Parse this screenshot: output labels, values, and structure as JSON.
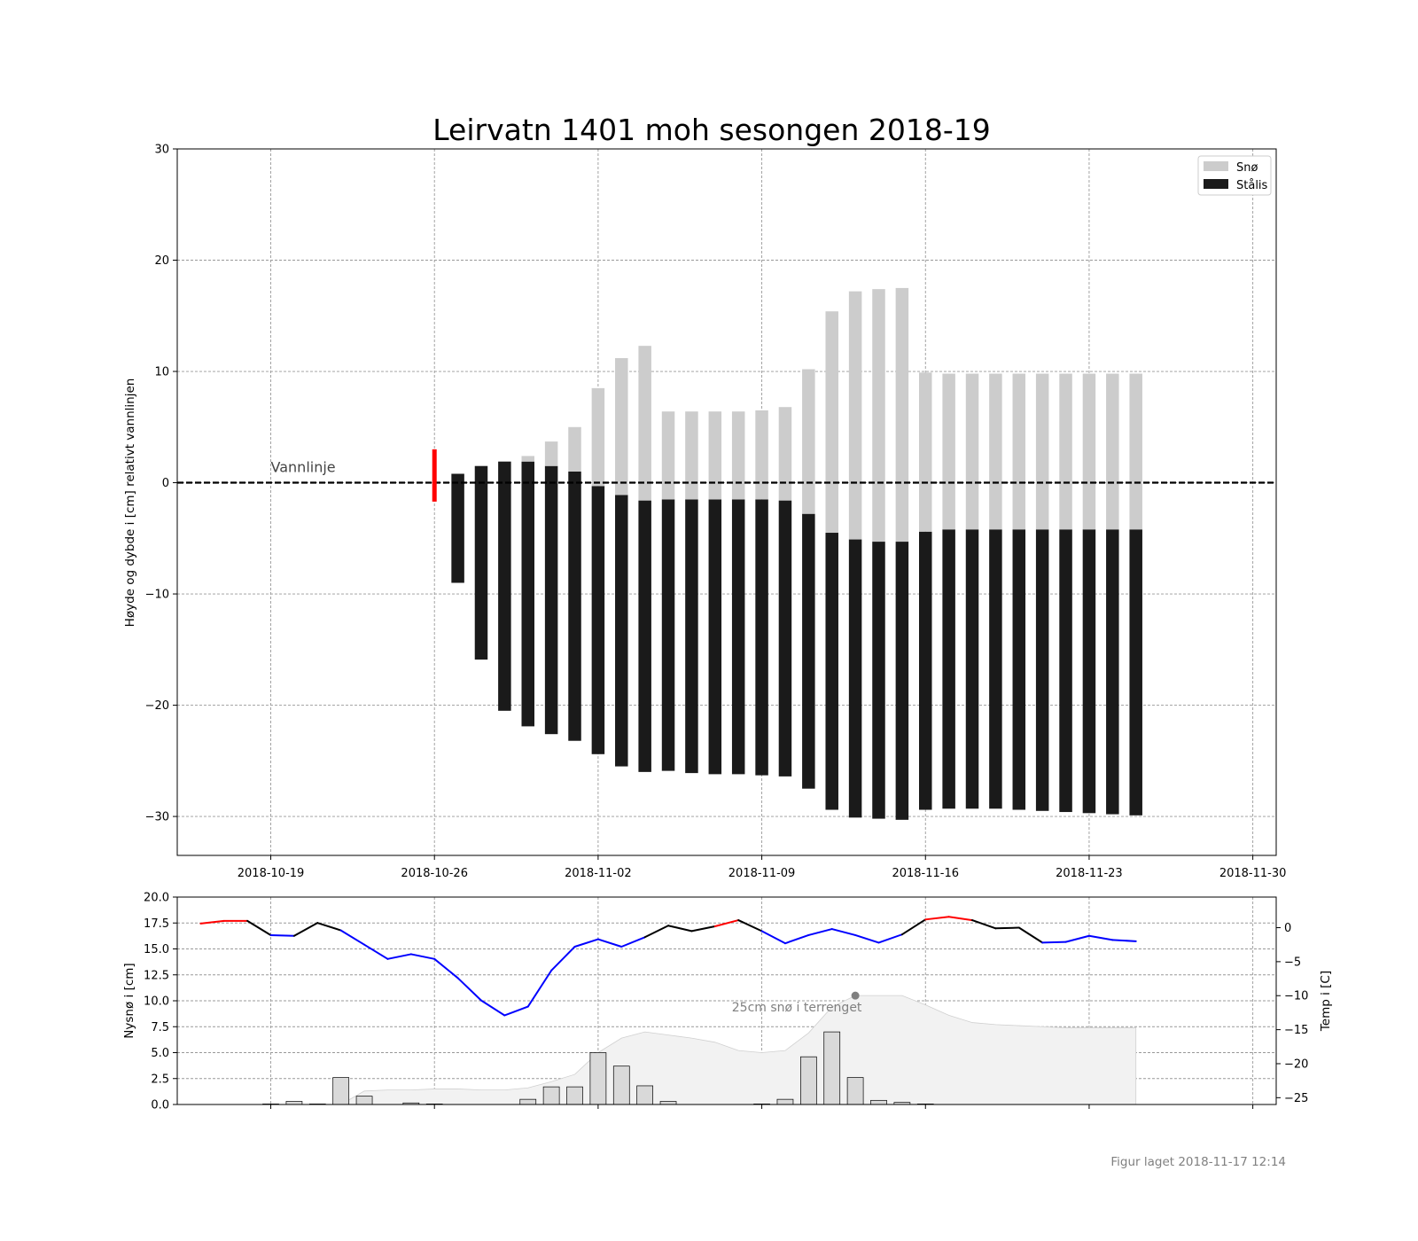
{
  "chart_data": [
    {
      "type": "bar",
      "title": "Leirvatn 1401 moh sesongen 2018-19",
      "ylabel": "Høyde og dybde i [cm] relativt vannlinjen",
      "xlabel": "",
      "xlim": [
        "2018-10-15",
        "2018-12-01"
      ],
      "ylim": [
        -33.5,
        30
      ],
      "x_ticks": [
        "2018-10-19",
        "2018-10-26",
        "2018-11-02",
        "2018-11-09",
        "2018-11-16",
        "2018-11-23",
        "2018-11-30"
      ],
      "y_ticks": [
        30,
        20,
        10,
        0,
        -10,
        -20,
        -30
      ],
      "grid": true,
      "legend_position": "top-right",
      "legend": [
        {
          "label": "Snø",
          "color": "#cccccc"
        },
        {
          "label": "Stålis",
          "color": "#1a1a1a"
        }
      ],
      "waterline": {
        "label": "Vannlinje",
        "y": 0
      },
      "marker": {
        "date": "2018-10-26",
        "y0": -1.7,
        "y1": 3,
        "color": "#ff0000"
      },
      "series": [
        {
          "name": "Stålis",
          "color": "#1a1a1a",
          "dates": [
            "2018-10-27",
            "2018-10-28",
            "2018-10-29",
            "2018-10-30",
            "2018-10-31",
            "2018-11-01",
            "2018-11-02",
            "2018-11-03",
            "2018-11-04",
            "2018-11-05",
            "2018-11-06",
            "2018-11-07",
            "2018-11-08",
            "2018-11-09",
            "2018-11-10",
            "2018-11-11",
            "2018-11-12",
            "2018-11-13",
            "2018-11-14",
            "2018-11-15",
            "2018-11-16",
            "2018-11-17",
            "2018-11-18",
            "2018-11-19",
            "2018-11-20",
            "2018-11-21",
            "2018-11-22",
            "2018-11-23",
            "2018-11-24",
            "2018-11-25"
          ],
          "top": [
            0.8,
            1.5,
            1.9,
            1.9,
            1.5,
            1.0,
            -0.3,
            -1.1,
            -1.6,
            -1.5,
            -1.5,
            -1.5,
            -1.5,
            -1.5,
            -1.6,
            -2.8,
            -4.5,
            -5.1,
            -5.3,
            -5.3,
            -4.4,
            -4.2,
            -4.2,
            -4.2,
            -4.2,
            -4.2,
            -4.2,
            -4.2,
            -4.2,
            -4.2
          ],
          "bottom": [
            -9.0,
            -15.9,
            -20.5,
            -21.9,
            -22.6,
            -23.2,
            -24.4,
            -25.5,
            -26.0,
            -25.9,
            -26.1,
            -26.2,
            -26.2,
            -26.3,
            -26.4,
            -27.5,
            -29.4,
            -30.1,
            -30.2,
            -30.3,
            -29.4,
            -29.3,
            -29.3,
            -29.3,
            -29.4,
            -29.5,
            -29.6,
            -29.7,
            -29.8,
            -29.9
          ]
        },
        {
          "name": "Snø",
          "color": "#cccccc",
          "dates": [
            "2018-10-30",
            "2018-10-31",
            "2018-11-01",
            "2018-11-02",
            "2018-11-03",
            "2018-11-04",
            "2018-11-05",
            "2018-11-06",
            "2018-11-07",
            "2018-11-08",
            "2018-11-09",
            "2018-11-10",
            "2018-11-11",
            "2018-11-12",
            "2018-11-13",
            "2018-11-14",
            "2018-11-15",
            "2018-11-16",
            "2018-11-17",
            "2018-11-18",
            "2018-11-19",
            "2018-11-20",
            "2018-11-21",
            "2018-11-22",
            "2018-11-23",
            "2018-11-24",
            "2018-11-25"
          ],
          "top": [
            2.4,
            3.7,
            5.0,
            8.5,
            11.2,
            12.3,
            6.4,
            6.4,
            6.4,
            6.4,
            6.5,
            6.8,
            10.2,
            15.4,
            17.2,
            17.4,
            17.5,
            9.9,
            9.8,
            9.8,
            9.8,
            9.8,
            9.8,
            9.8,
            9.8,
            9.8,
            9.8
          ],
          "bottom": [
            1.9,
            1.5,
            1.0,
            -0.3,
            -1.1,
            -1.6,
            -1.5,
            -1.5,
            -1.5,
            -1.5,
            -1.5,
            -1.6,
            -2.8,
            -4.5,
            -5.1,
            -5.3,
            -5.3,
            -4.4,
            -4.2,
            -4.2,
            -4.2,
            -4.2,
            -4.2,
            -4.2,
            -4.2,
            -4.2,
            -4.2
          ]
        }
      ]
    },
    {
      "type": "bar",
      "ylabel": "Nysnø i [cm]",
      "y2label": "Temp i [C]",
      "xlim": [
        "2018-10-15",
        "2018-12-01"
      ],
      "ylim": [
        0,
        20
      ],
      "y2lim": [
        -26,
        4.5
      ],
      "y_ticks": [
        "0.0",
        "2.5",
        "5.0",
        "7.5",
        "10.0",
        "12.5",
        "15.0",
        "17.5",
        "20.0"
      ],
      "y2_ticks": [
        0,
        -5,
        -10,
        -15,
        -20,
        -25
      ],
      "grid": true,
      "annotation": {
        "text": "25cm snø i terrenget",
        "date": "2018-11-13",
        "value": 10.5
      },
      "new_snow": {
        "name": "Nysnø",
        "dates": [
          "2018-10-19",
          "2018-10-20",
          "2018-10-21",
          "2018-10-22",
          "2018-10-23",
          "2018-10-25",
          "2018-10-26",
          "2018-10-30",
          "2018-10-31",
          "2018-11-01",
          "2018-11-02",
          "2018-11-03",
          "2018-11-04",
          "2018-11-05",
          "2018-11-09",
          "2018-11-10",
          "2018-11-11",
          "2018-11-12",
          "2018-11-13",
          "2018-11-14",
          "2018-11-15",
          "2018-11-16"
        ],
        "values": [
          0.05,
          0.3,
          0.05,
          2.6,
          0.8,
          0.15,
          0.05,
          0.5,
          1.7,
          1.7,
          5.0,
          3.7,
          1.8,
          0.3,
          0.05,
          0.5,
          4.6,
          7.0,
          2.6,
          0.4,
          0.2,
          0.05
        ]
      },
      "terrain_snow": {
        "name": "Snø i terrenget",
        "dates": [
          "2018-10-22",
          "2018-10-23",
          "2018-10-24",
          "2018-10-25",
          "2018-10-26",
          "2018-10-27",
          "2018-10-28",
          "2018-10-29",
          "2018-10-30",
          "2018-10-31",
          "2018-11-01",
          "2018-11-02",
          "2018-11-03",
          "2018-11-04",
          "2018-11-05",
          "2018-11-06",
          "2018-11-07",
          "2018-11-08",
          "2018-11-09",
          "2018-11-10",
          "2018-11-11",
          "2018-11-12",
          "2018-11-13",
          "2018-11-14",
          "2018-11-15",
          "2018-11-16",
          "2018-11-17",
          "2018-11-18",
          "2018-11-19",
          "2018-11-20",
          "2018-11-21",
          "2018-11-22",
          "2018-11-23",
          "2018-11-24",
          "2018-11-25"
        ],
        "values": [
          0,
          1.3,
          1.4,
          1.4,
          1.5,
          1.5,
          1.4,
          1.4,
          1.6,
          2.2,
          2.9,
          5.0,
          6.4,
          7.0,
          6.7,
          6.4,
          6.0,
          5.2,
          5.0,
          5.2,
          6.9,
          9.4,
          10.5,
          10.5,
          10.5,
          9.6,
          8.6,
          7.9,
          7.7,
          7.6,
          7.5,
          7.4,
          7.4,
          7.4,
          7.4
        ]
      },
      "temperature": {
        "name": "Temp",
        "dates": [
          "2018-10-16",
          "2018-10-17",
          "2018-10-18",
          "2018-10-19",
          "2018-10-20",
          "2018-10-21",
          "2018-10-22",
          "2018-10-23",
          "2018-10-24",
          "2018-10-25",
          "2018-10-26",
          "2018-10-27",
          "2018-10-28",
          "2018-10-29",
          "2018-10-30",
          "2018-10-31",
          "2018-11-01",
          "2018-11-02",
          "2018-11-03",
          "2018-11-04",
          "2018-11-05",
          "2018-11-06",
          "2018-11-07",
          "2018-11-08",
          "2018-11-09",
          "2018-11-10",
          "2018-11-11",
          "2018-11-12",
          "2018-11-13",
          "2018-11-14",
          "2018-11-15",
          "2018-11-16",
          "2018-11-17",
          "2018-11-18",
          "2018-11-19",
          "2018-11-20",
          "2018-11-21",
          "2018-11-22",
          "2018-11-23",
          "2018-11-24",
          "2018-11-25"
        ],
        "values": [
          0.6,
          1.0,
          1.0,
          -1.1,
          -1.2,
          0.7,
          -0.4,
          -2.5,
          -4.6,
          -3.9,
          -4.6,
          -7.4,
          -10.7,
          -12.9,
          -11.6,
          -6.3,
          -2.8,
          -1.7,
          -2.8,
          -1.4,
          0.3,
          -0.5,
          0.2,
          1.1,
          -0.5,
          -2.3,
          -1.1,
          -0.2,
          -1.1,
          -2.2,
          -1.0,
          1.2,
          1.6,
          1.1,
          -0.1,
          0.0,
          -2.2,
          -2.1,
          -1.2,
          -1.8,
          -2.0
        ],
        "colors": {
          "cold": "#0000ff",
          "warm": "#ff0000",
          "neutral": "#000000"
        }
      }
    }
  ],
  "footer": "Figur laget 2018-11-17 12:14"
}
